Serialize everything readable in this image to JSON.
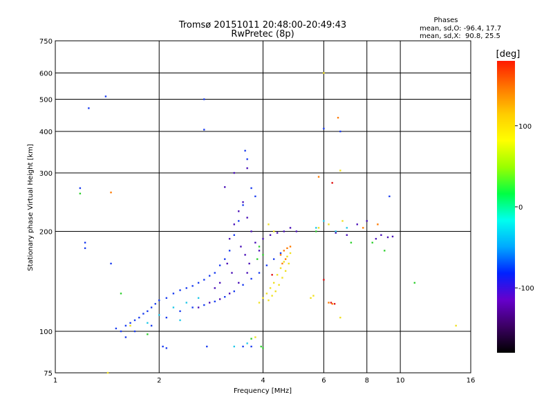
{
  "chart_data": {
    "type": "scatter",
    "title": "Tromsø 20151011 20:48:00-20:49:43",
    "subtitle": "RwPretec (8p)",
    "xlabel": "Frequency [MHz]",
    "ylabel": "Stationary phase Virtual Height [km]",
    "x_scale": "log2",
    "y_scale": "log",
    "xlim": [
      1,
      16
    ],
    "ylim": [
      75,
      750
    ],
    "x_ticks": [
      1,
      2,
      4,
      6,
      8,
      10,
      16
    ],
    "y_ticks": [
      75,
      100,
      200,
      300,
      400,
      500,
      600,
      750
    ],
    "grid_x": [
      2,
      4,
      6,
      8,
      10
    ],
    "grid_y": [
      100,
      200,
      300,
      400,
      500,
      600
    ],
    "phase_box": {
      "title": "Phases",
      "line_o": "mean, sd,O: -96.4, 17.7",
      "line_x": "mean, sd,X:  90.8, 25.5"
    },
    "colorbar": {
      "label": "[deg]",
      "range": [
        -180,
        180
      ],
      "ticks": [
        100,
        0,
        -100
      ],
      "colormap": [
        "#000000",
        "#3c0064",
        "#6600cc",
        "#0022ff",
        "#00aaff",
        "#00ffee",
        "#00ff44",
        "#99ff00",
        "#ffff00",
        "#ffcc00",
        "#ff7700",
        "#ff1a00"
      ]
    },
    "series": [
      {
        "color": "#1a3cf0",
        "points": [
          [
            1.25,
            470
          ],
          [
            1.4,
            510
          ],
          [
            1.22,
            185
          ],
          [
            1.22,
            178
          ],
          [
            1.18,
            270
          ],
          [
            1.45,
            160
          ],
          [
            1.5,
            102
          ],
          [
            1.55,
            100
          ],
          [
            1.6,
            104
          ],
          [
            1.65,
            106
          ],
          [
            1.7,
            108
          ],
          [
            1.75,
            110
          ],
          [
            1.8,
            113
          ],
          [
            1.85,
            115
          ],
          [
            1.9,
            118
          ],
          [
            1.95,
            121
          ],
          [
            2.0,
            124
          ],
          [
            2.1,
            126
          ],
          [
            2.2,
            130
          ],
          [
            2.3,
            133
          ],
          [
            2.4,
            135
          ],
          [
            2.5,
            137
          ],
          [
            2.6,
            140
          ],
          [
            2.7,
            143
          ],
          [
            2.8,
            147
          ],
          [
            2.9,
            150
          ],
          [
            3.0,
            158
          ],
          [
            3.1,
            165
          ],
          [
            3.2,
            175
          ],
          [
            3.3,
            195
          ],
          [
            3.4,
            215
          ],
          [
            3.5,
            240
          ],
          [
            3.6,
            330
          ],
          [
            3.55,
            350
          ],
          [
            3.7,
            270
          ],
          [
            3.8,
            255
          ],
          [
            1.6,
            96
          ],
          [
            1.7,
            100
          ],
          [
            1.9,
            104
          ],
          [
            2.1,
            110
          ],
          [
            2.3,
            115
          ],
          [
            2.5,
            118
          ],
          [
            2.7,
            120
          ],
          [
            2.9,
            123
          ],
          [
            3.1,
            127
          ],
          [
            3.3,
            132
          ],
          [
            3.5,
            138
          ],
          [
            3.7,
            144
          ],
          [
            3.9,
            150
          ],
          [
            4.1,
            158
          ],
          [
            4.3,
            165
          ],
          [
            4.5,
            172
          ],
          [
            2.05,
            90
          ],
          [
            2.1,
            89
          ],
          [
            2.75,
            90
          ],
          [
            3.5,
            90
          ],
          [
            3.7,
            90
          ],
          [
            2.7,
            500
          ],
          [
            2.7,
            405
          ],
          [
            6.7,
            400
          ],
          [
            6.0,
            408
          ],
          [
            9.3,
            255
          ]
        ]
      },
      {
        "color": "#4a10b8",
        "points": [
          [
            2.6,
            118
          ],
          [
            2.8,
            122
          ],
          [
            3.0,
            125
          ],
          [
            3.2,
            130
          ],
          [
            3.4,
            140
          ],
          [
            3.6,
            150
          ],
          [
            3.2,
            190
          ],
          [
            3.3,
            210
          ],
          [
            3.4,
            230
          ],
          [
            3.5,
            245
          ],
          [
            3.6,
            220
          ],
          [
            3.7,
            200
          ],
          [
            3.8,
            185
          ],
          [
            3.9,
            175
          ],
          [
            3.45,
            180
          ],
          [
            3.55,
            170
          ],
          [
            3.65,
            160
          ],
          [
            3.15,
            160
          ],
          [
            3.25,
            150
          ],
          [
            3.0,
            140
          ],
          [
            2.9,
            135
          ],
          [
            4.0,
            190
          ],
          [
            4.2,
            195
          ],
          [
            4.4,
            198
          ],
          [
            4.6,
            200
          ],
          [
            4.8,
            205
          ],
          [
            5.0,
            200
          ],
          [
            7.5,
            210
          ],
          [
            8.0,
            215
          ],
          [
            8.5,
            190
          ],
          [
            8.8,
            195
          ],
          [
            9.2,
            192
          ],
          [
            9.5,
            193
          ],
          [
            7.0,
            195
          ],
          [
            6.5,
            198
          ],
          [
            3.1,
            272
          ],
          [
            3.6,
            310
          ],
          [
            3.3,
            300
          ]
        ]
      },
      {
        "color": "#f0e020",
        "points": [
          [
            3.9,
            122
          ],
          [
            4.0,
            126
          ],
          [
            4.1,
            130
          ],
          [
            4.2,
            135
          ],
          [
            4.3,
            140
          ],
          [
            4.4,
            148
          ],
          [
            4.5,
            155
          ],
          [
            4.6,
            162
          ],
          [
            4.7,
            168
          ],
          [
            4.8,
            172
          ],
          [
            4.35,
            132
          ],
          [
            4.45,
            138
          ],
          [
            4.55,
            145
          ],
          [
            4.65,
            152
          ],
          [
            4.75,
            160
          ],
          [
            4.25,
            128
          ],
          [
            4.15,
            124
          ],
          [
            5.6,
            128
          ],
          [
            5.5,
            126
          ],
          [
            6.7,
            110
          ],
          [
            3.8,
            96
          ],
          [
            1.65,
            104
          ],
          [
            1.42,
            75
          ],
          [
            14.5,
            104
          ],
          [
            5.8,
            205
          ],
          [
            6.2,
            210
          ],
          [
            6.8,
            215
          ],
          [
            6.0,
            600
          ],
          [
            6.7,
            305
          ],
          [
            4.3,
            200
          ],
          [
            4.15,
            210
          ]
        ]
      },
      {
        "color": "#ff7a00",
        "points": [
          [
            4.5,
            170
          ],
          [
            4.6,
            175
          ],
          [
            4.7,
            178
          ],
          [
            4.8,
            180
          ],
          [
            4.65,
            165
          ],
          [
            4.55,
            160
          ],
          [
            6.2,
            122
          ],
          [
            6.35,
            121
          ],
          [
            6.6,
            440
          ],
          [
            1.45,
            262
          ],
          [
            5.8,
            292
          ],
          [
            7.8,
            205
          ],
          [
            8.6,
            210
          ]
        ]
      },
      {
        "color": "#e01010",
        "points": [
          [
            6.3,
            122
          ],
          [
            6.45,
            121
          ],
          [
            6.35,
            280
          ],
          [
            4.25,
            148
          ],
          [
            6.0,
            143
          ]
        ]
      },
      {
        "color": "#30d030",
        "points": [
          [
            1.18,
            260
          ],
          [
            1.55,
            130
          ],
          [
            1.85,
            98
          ],
          [
            3.7,
            95
          ],
          [
            3.95,
            90
          ],
          [
            4.0,
            89
          ],
          [
            11.0,
            140
          ],
          [
            5.7,
            200
          ],
          [
            7.2,
            185
          ],
          [
            8.3,
            185
          ],
          [
            9.0,
            175
          ],
          [
            3.9,
            180
          ],
          [
            4.0,
            170
          ],
          [
            3.85,
            165
          ]
        ]
      },
      {
        "color": "#20c8e8",
        "points": [
          [
            2.0,
            112
          ],
          [
            2.2,
            118
          ],
          [
            2.4,
            122
          ],
          [
            2.6,
            126
          ],
          [
            3.3,
            90
          ],
          [
            3.6,
            92
          ],
          [
            6.0,
            215
          ],
          [
            6.5,
            200
          ],
          [
            7.0,
            205
          ],
          [
            5.7,
            205
          ],
          [
            1.85,
            106
          ],
          [
            2.3,
            108
          ]
        ]
      }
    ]
  }
}
